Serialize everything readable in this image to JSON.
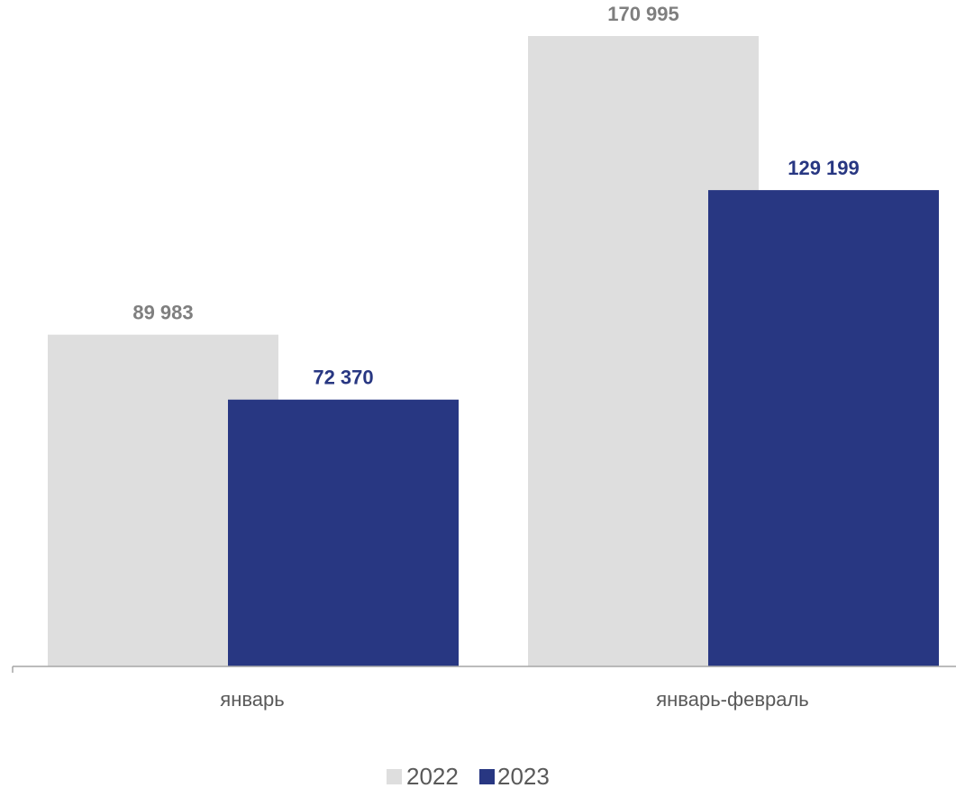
{
  "chart_data": {
    "type": "bar",
    "categories": [
      "январь",
      "январь-февраль"
    ],
    "series": [
      {
        "name": "2022",
        "values": [
          89983,
          170995
        ],
        "labels": [
          "89 983",
          "170 995"
        ],
        "color": "#dedede",
        "label_color": "#7f7f7f"
      },
      {
        "name": "2023",
        "values": [
          72370,
          129199
        ],
        "labels": [
          "72 370",
          "129 199"
        ],
        "color": "#283782",
        "label_color": "#283782"
      }
    ],
    "title": "",
    "xlabel": "",
    "ylabel": "",
    "ylim": [
      0,
      170995
    ],
    "grid": false,
    "legend_position": "bottom"
  }
}
